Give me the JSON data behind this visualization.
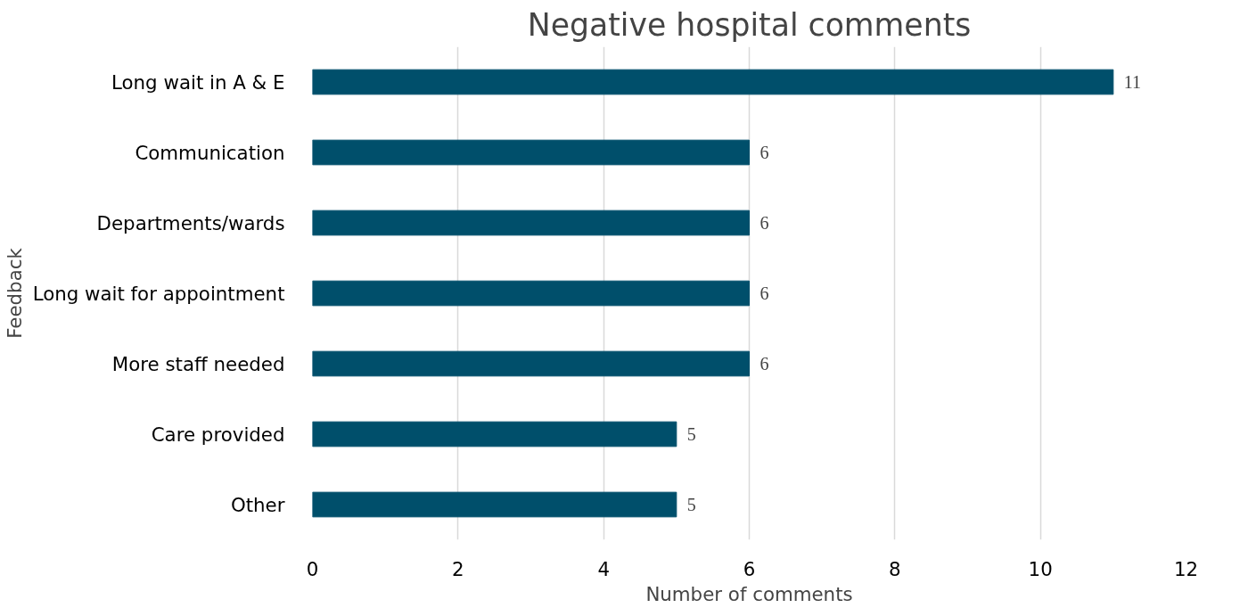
{
  "chart_data": {
    "type": "bar",
    "orientation": "horizontal",
    "title": "Negative hospital comments",
    "xlabel": "Number of comments",
    "ylabel": "Feedback",
    "categories": [
      "Long wait in A & E",
      "Communication",
      "Departments/wards",
      "Long wait for appointment",
      "More staff needed",
      "Care provided",
      "Other"
    ],
    "values": [
      11,
      6,
      6,
      6,
      6,
      5,
      5
    ],
    "color": "#004f6b",
    "xlim": [
      0,
      12
    ],
    "xticks": [
      0,
      2,
      4,
      6,
      8,
      10,
      12
    ],
    "grid": "x",
    "data_labels": true
  }
}
